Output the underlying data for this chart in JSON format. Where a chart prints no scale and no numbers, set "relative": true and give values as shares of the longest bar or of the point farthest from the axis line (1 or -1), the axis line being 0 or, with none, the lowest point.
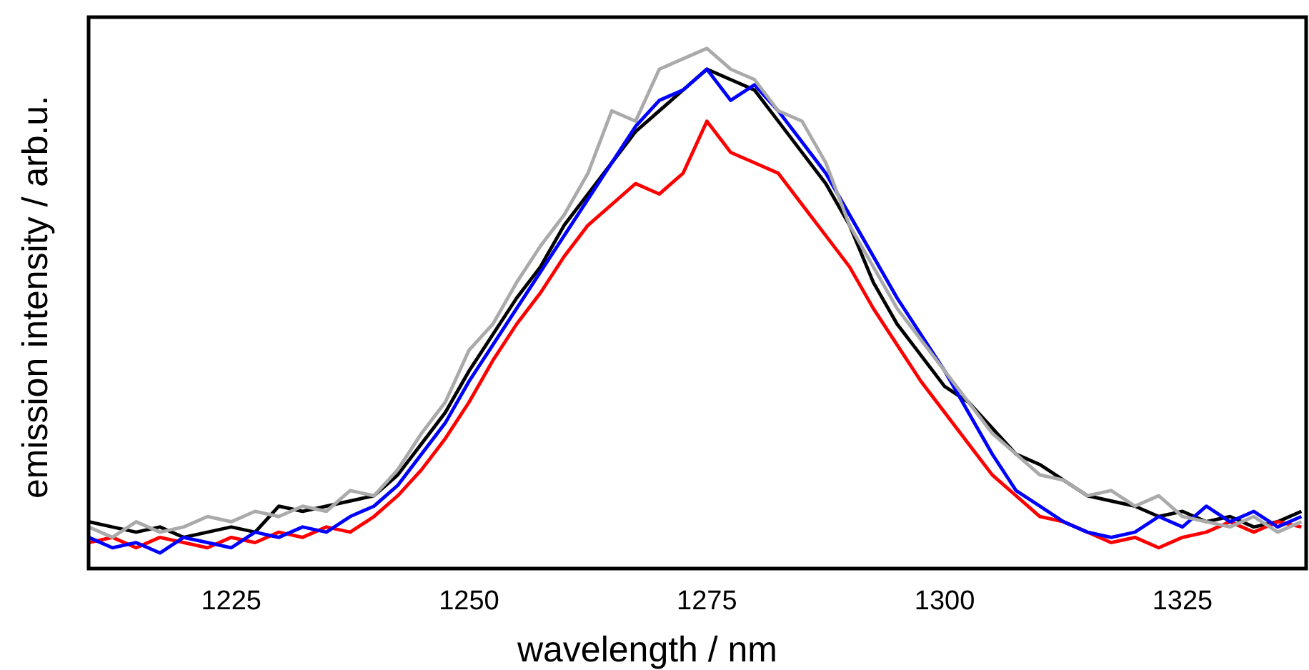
{
  "chart_data": {
    "type": "line",
    "relative": true,
    "xlabel": "wavelength / nm",
    "ylabel": "emission intensity / arb.u.",
    "xlim": [
      1210,
      1338
    ],
    "xticks": [
      1225,
      1250,
      1275,
      1300,
      1325
    ],
    "x": [
      1210,
      1212.5,
      1215,
      1217.5,
      1220,
      1222.5,
      1225,
      1227.5,
      1230,
      1232.5,
      1235,
      1237.5,
      1240,
      1242.5,
      1245,
      1247.5,
      1250,
      1252.5,
      1255,
      1257.5,
      1260,
      1262.5,
      1265,
      1267.5,
      1270,
      1272.5,
      1275,
      1277.5,
      1280,
      1282.5,
      1285,
      1287.5,
      1290,
      1292.5,
      1295,
      1297.5,
      1300,
      1302.5,
      1305,
      1307.5,
      1310,
      1312.5,
      1315,
      1317.5,
      1320,
      1322.5,
      1325,
      1327.5,
      1330,
      1332.5,
      1335,
      1337.5
    ],
    "series": [
      {
        "color": "#000000",
        "values": [
          0.09,
          0.08,
          0.07,
          0.08,
          0.06,
          0.07,
          0.08,
          0.07,
          0.12,
          0.11,
          0.12,
          0.13,
          0.14,
          0.18,
          0.24,
          0.3,
          0.38,
          0.45,
          0.52,
          0.58,
          0.66,
          0.72,
          0.78,
          0.84,
          0.88,
          0.92,
          0.96,
          0.94,
          0.92,
          0.86,
          0.8,
          0.74,
          0.66,
          0.55,
          0.47,
          0.41,
          0.35,
          0.32,
          0.27,
          0.22,
          0.2,
          0.17,
          0.14,
          0.13,
          0.12,
          0.1,
          0.11,
          0.09,
          0.1,
          0.08,
          0.09,
          0.11
        ]
      },
      {
        "color": "#ff0000",
        "values": [
          0.05,
          0.06,
          0.04,
          0.06,
          0.05,
          0.04,
          0.06,
          0.05,
          0.07,
          0.06,
          0.08,
          0.07,
          0.1,
          0.14,
          0.19,
          0.25,
          0.32,
          0.4,
          0.47,
          0.53,
          0.6,
          0.66,
          0.7,
          0.74,
          0.72,
          0.76,
          0.86,
          0.8,
          0.78,
          0.76,
          0.7,
          0.64,
          0.58,
          0.5,
          0.43,
          0.36,
          0.3,
          0.24,
          0.18,
          0.14,
          0.1,
          0.09,
          0.07,
          0.05,
          0.06,
          0.04,
          0.06,
          0.07,
          0.09,
          0.07,
          0.09,
          0.08
        ]
      },
      {
        "color": "#0000ff",
        "values": [
          0.06,
          0.04,
          0.05,
          0.03,
          0.06,
          0.05,
          0.04,
          0.07,
          0.06,
          0.08,
          0.07,
          0.1,
          0.12,
          0.16,
          0.22,
          0.28,
          0.36,
          0.43,
          0.5,
          0.57,
          0.64,
          0.71,
          0.78,
          0.85,
          0.9,
          0.92,
          0.96,
          0.9,
          0.93,
          0.88,
          0.82,
          0.76,
          0.68,
          0.6,
          0.52,
          0.45,
          0.38,
          0.3,
          0.22,
          0.15,
          0.12,
          0.09,
          0.07,
          0.06,
          0.07,
          0.1,
          0.08,
          0.12,
          0.09,
          0.11,
          0.08,
          0.1
        ]
      },
      {
        "color": "#aaaaaa",
        "values": [
          0.08,
          0.06,
          0.09,
          0.07,
          0.08,
          0.1,
          0.09,
          0.11,
          0.1,
          0.12,
          0.11,
          0.15,
          0.14,
          0.19,
          0.26,
          0.32,
          0.42,
          0.47,
          0.55,
          0.62,
          0.68,
          0.76,
          0.88,
          0.86,
          0.96,
          0.98,
          1.0,
          0.96,
          0.94,
          0.88,
          0.86,
          0.78,
          0.66,
          0.58,
          0.5,
          0.44,
          0.38,
          0.32,
          0.26,
          0.22,
          0.18,
          0.17,
          0.14,
          0.15,
          0.12,
          0.14,
          0.1,
          0.09,
          0.08,
          0.1,
          0.07,
          0.09
        ]
      }
    ]
  }
}
